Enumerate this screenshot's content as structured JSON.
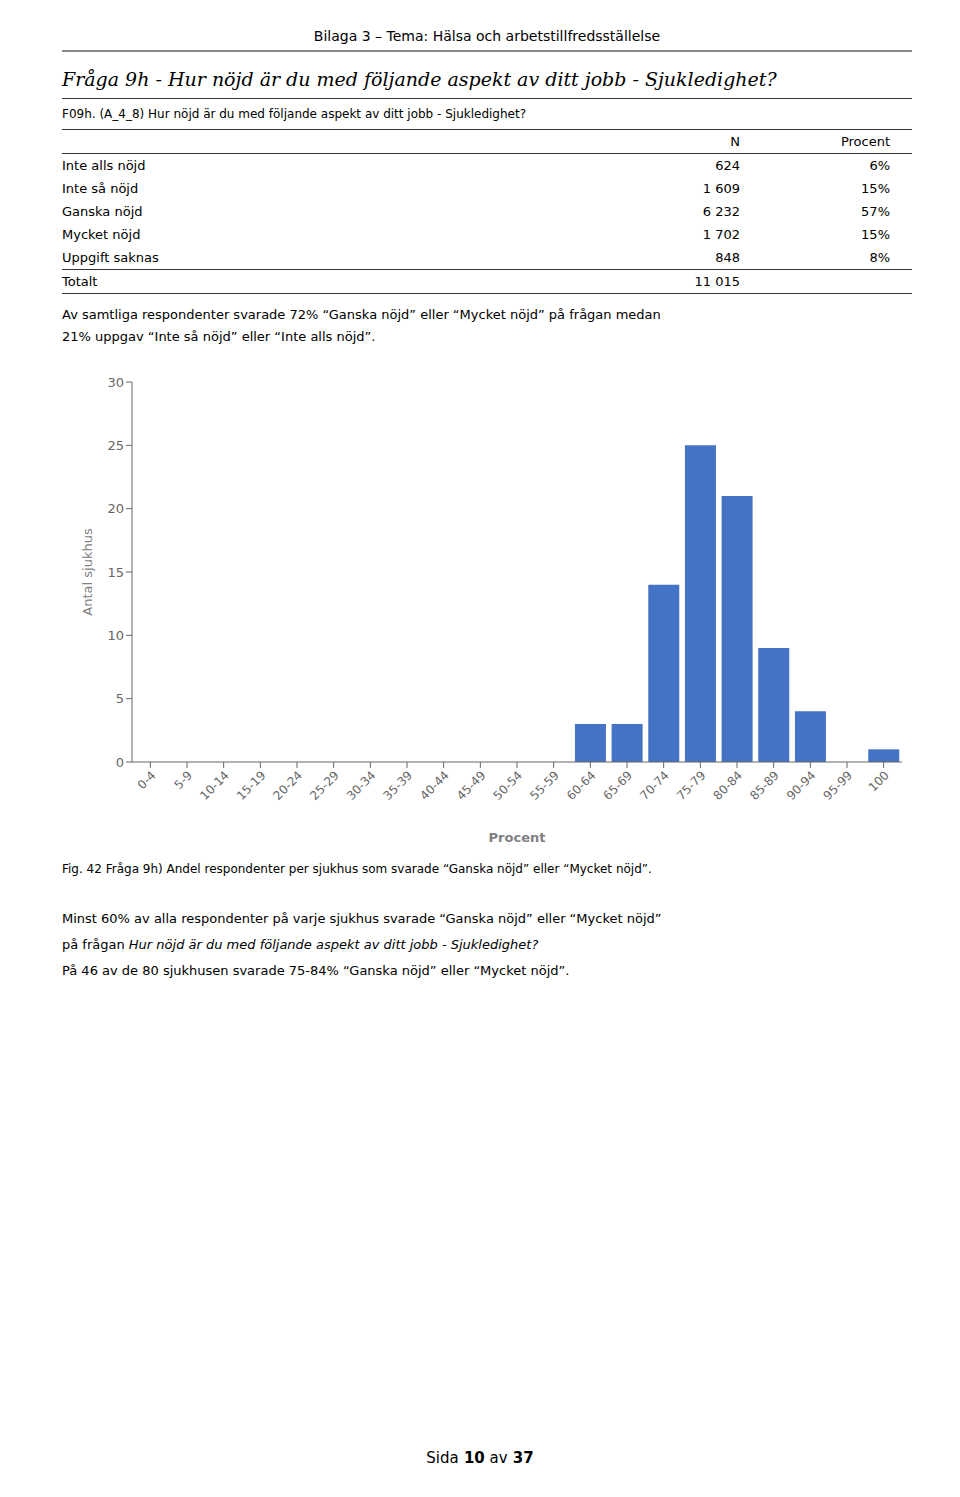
{
  "page": {
    "page_title": "Bilaga 3 – Tema: Hälsa och arbetstillfredsställelse",
    "section_title": "Fråga 9h - Hur nöjd är du med följande aspekt av ditt jobb - Sjukledighet?",
    "table_question": "F09h. (A_4_8) Hur nöjd är du med följande aspekt av ditt jobb - Sjukledighet?",
    "table_headers": [
      "N",
      "Procent"
    ],
    "table_rows": [
      [
        "Inte alls nöjd",
        "624",
        "6%"
      ],
      [
        "Inte så nöjd",
        "1 609",
        "15%"
      ],
      [
        "Ganska nöjd",
        "6 232",
        "57%"
      ],
      [
        "Mycket nöjd",
        "1 702",
        "15%"
      ],
      [
        "Uppgift saknas",
        "848",
        "8%"
      ]
    ],
    "table_total": [
      "Totalt",
      "11 015"
    ],
    "paragraph1": [
      "Av samtliga respondenter svarade 72% “Ganska nöjd” eller “Mycket nöjd” på frågan medan",
      "21% uppgav “Inte så nöjd” eller “Inte alls nöjd”."
    ],
    "fig_caption": "Fig. 42 Fråga 9h) Andel respondenter per sjukhus som svarade “Ganska nöjd” eller “Mycket nöjd”.",
    "paragraph2_line1": "Minst 60% av alla respondenter på varje sjukhus svarade “Ganska nöjd” eller “Mycket nöjd”",
    "paragraph2_line2_normal": "på frågan",
    "paragraph2_line2_italic": "Hur nöjd är du med följande aspekt av ditt jobb - Sjukledighet?",
    "paragraph2_line3": "På 46 av de 80 sjukhusen svarade 75-84% “Ganska nöjd” eller “Mycket nöjd”.",
    "footer": [
      [
        "Sida",
        false
      ],
      [
        "10",
        true
      ],
      [
        "av",
        false
      ],
      [
        "37",
        true
      ]
    ]
  },
  "chart_data": {
    "type": "bar",
    "xlabel": "Procent",
    "ylabel": "Antal sjukhus",
    "categories": [
      "0-4",
      "5-9",
      "10-14",
      "15-19",
      "20-24",
      "25-29",
      "30-34",
      "35-39",
      "40-44",
      "45-49",
      "50-54",
      "55-59",
      "60-64",
      "65-69",
      "70-74",
      "75-79",
      "80-84",
      "85-89",
      "90-94",
      "95-99",
      "100"
    ],
    "values": [
      0,
      0,
      0,
      0,
      0,
      0,
      0,
      0,
      0,
      0,
      0,
      0,
      3,
      3,
      14,
      25,
      21,
      9,
      4,
      0,
      1
    ],
    "color": "#4472C4",
    "ylim": [
      0,
      30
    ],
    "yticks": [
      0,
      5,
      10,
      15,
      20,
      25,
      30
    ]
  }
}
